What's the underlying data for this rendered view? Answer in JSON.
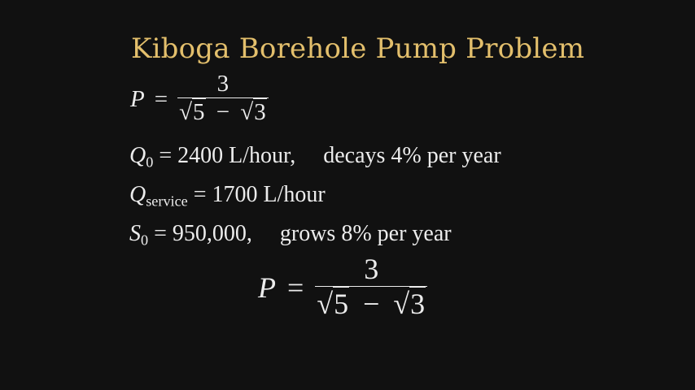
{
  "title": "Kiboga Borehole Pump Problem",
  "formula": {
    "lhs": "P",
    "equals": "=",
    "numerator": "3",
    "rad1": "5",
    "minus": "−",
    "rad2": "3",
    "sqrt_symbol": "√"
  },
  "lines": [
    {
      "var": "Q",
      "sub": "0",
      "rest": " = 2400 L/hour,",
      "note": "decays 4% per year"
    },
    {
      "var": "Q",
      "sub": "service",
      "rest": " = 1700 L/hour",
      "note": ""
    },
    {
      "var": "S",
      "sub": "0",
      "rest": " = 950,000,",
      "note": "grows 8% per year"
    }
  ],
  "colors": {
    "background": "#111111",
    "title": "#e3bf6c",
    "text": "#ececec"
  }
}
